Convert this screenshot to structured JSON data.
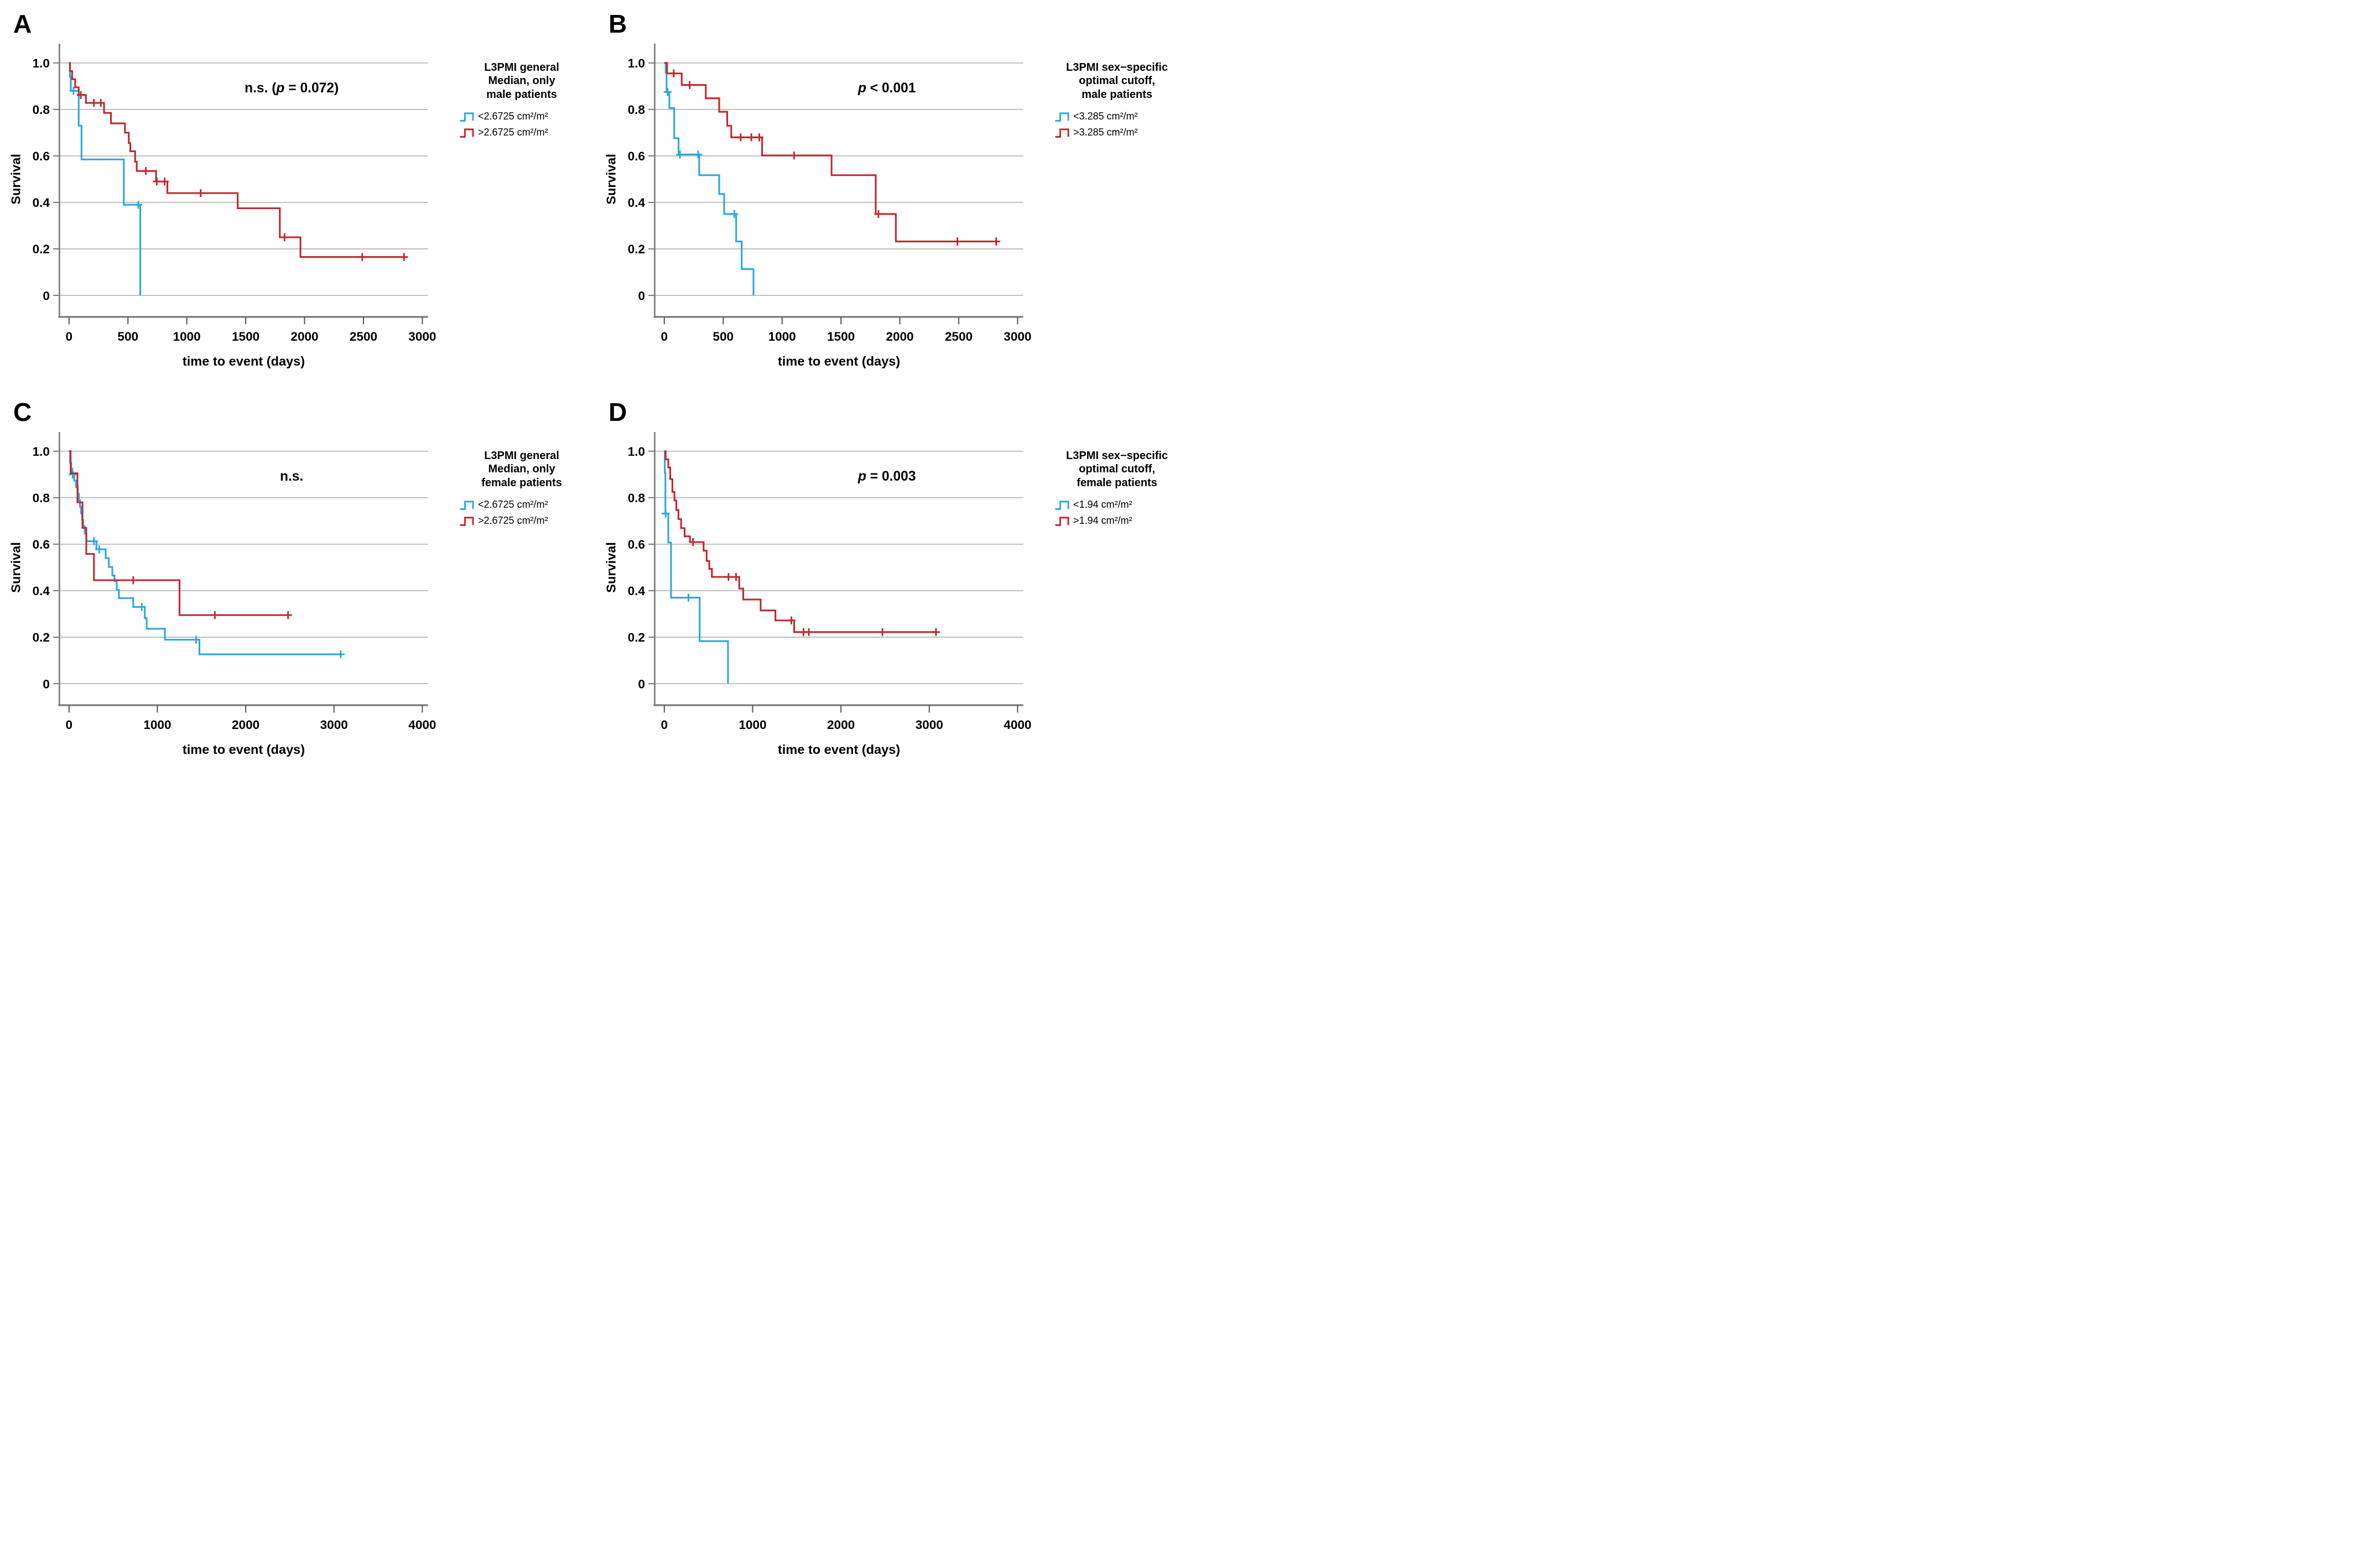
{
  "figure": {
    "colors": {
      "below_cutoff_line": "#2AA7DE",
      "above_cutoff_line": "#C1272D",
      "gridline": "#b3b3b3",
      "axis_line": "#7a7a7a",
      "tick": "#555555",
      "text": "#000000",
      "background": "#ffffff"
    }
  },
  "chart_data": [
    {
      "panel_letter": "A",
      "type": "line",
      "subtype": "kaplan-meier-step",
      "legend_title_lines": [
        "L3PMI general",
        "Median, only",
        "male patients"
      ],
      "annotation": {
        "pre": "n.s. (",
        "p_italic": "p",
        "post": " = 0.072)"
      },
      "xlabel": "time to event (days)",
      "ylabel": "Survival",
      "xticks": [
        0,
        500,
        1000,
        1500,
        2000,
        2500,
        3000
      ],
      "yticks": [
        "1.0",
        "0.8",
        "0.6",
        "0.4",
        "0.2",
        "0"
      ],
      "ylim": [
        0,
        1.0
      ],
      "xlim": [
        0,
        3200
      ],
      "grid": "horizontal",
      "legend_position": "right",
      "series": [
        {
          "name": "<2.6725 cm²/m²",
          "color": "#2AA7DE",
          "steps": [
            [
              0,
              1
            ],
            [
              8,
              0.94
            ],
            [
              15,
              0.88
            ],
            [
              82,
              0.73
            ],
            [
              106,
              0.585
            ],
            [
              465,
              0.39
            ],
            [
              605,
              0
            ]
          ],
          "censors": [
            [
              38,
              0.88
            ],
            [
              588,
              0.39
            ]
          ]
        },
        {
          "name": ">2.6725 cm²/m²",
          "color": "#C1272D",
          "steps": [
            [
              0,
              1
            ],
            [
              7,
              0.965
            ],
            [
              26,
              0.93
            ],
            [
              52,
              0.895
            ],
            [
              82,
              0.862
            ],
            [
              143,
              0.828
            ],
            [
              297,
              0.785
            ],
            [
              356,
              0.74
            ],
            [
              475,
              0.7
            ],
            [
              507,
              0.655
            ],
            [
              520,
              0.62
            ],
            [
              561,
              0.575
            ],
            [
              575,
              0.535
            ],
            [
              739,
              0.49
            ],
            [
              835,
              0.44
            ],
            [
              1432,
              0.375
            ],
            [
              1790,
              0.25
            ],
            [
              1965,
              0.165
            ],
            [
              2850,
              0.165
            ]
          ],
          "censors": [
            [
              100,
              0.862
            ],
            [
              211,
              0.828
            ],
            [
              270,
              0.828
            ],
            [
              652,
              0.535
            ],
            [
              745,
              0.49
            ],
            [
              812,
              0.49
            ],
            [
              1118,
              0.44
            ],
            [
              1830,
              0.25
            ],
            [
              2490,
              0.165
            ],
            [
              2845,
              0.165
            ]
          ]
        }
      ]
    },
    {
      "panel_letter": "B",
      "type": "line",
      "subtype": "kaplan-meier-step",
      "legend_title_lines": [
        "L3PMI sex−specific",
        "optimal cutoff,",
        "male patients"
      ],
      "annotation": {
        "pre": "",
        "p_italic": "p",
        "post": " < 0.001"
      },
      "xlabel": "time to event (days)",
      "ylabel": "Survival",
      "xticks": [
        0,
        500,
        1000,
        1500,
        2000,
        2500,
        3000
      ],
      "yticks": [
        "1.0",
        "0.8",
        "0.6",
        "0.4",
        "0.2",
        "0"
      ],
      "ylim": [
        0,
        1.0
      ],
      "xlim": [
        0,
        3200
      ],
      "grid": "horizontal",
      "legend_position": "right",
      "series": [
        {
          "name": "<3.285 cm²/m²",
          "color": "#2AA7DE",
          "steps": [
            [
              0,
              1
            ],
            [
              12,
              0.96
            ],
            [
              19,
              0.875
            ],
            [
              43,
              0.806
            ],
            [
              84,
              0.676
            ],
            [
              121,
              0.606
            ],
            [
              296,
              0.517
            ],
            [
              466,
              0.436
            ],
            [
              508,
              0.35
            ],
            [
              610,
              0.232
            ],
            [
              657,
              0.113
            ],
            [
              757,
              0
            ]
          ],
          "censors": [
            [
              28,
              0.875
            ],
            [
              133,
              0.606
            ],
            [
              287,
              0.606
            ],
            [
              594,
              0.35
            ]
          ]
        },
        {
          "name": ">3.285 cm²/m²",
          "color": "#C1272D",
          "steps": [
            [
              0,
              1
            ],
            [
              23,
              0.955
            ],
            [
              148,
              0.905
            ],
            [
              352,
              0.848
            ],
            [
              466,
              0.79
            ],
            [
              534,
              0.73
            ],
            [
              568,
              0.68
            ],
            [
              830,
              0.602
            ],
            [
              1420,
              0.517
            ],
            [
              1795,
              0.35
            ],
            [
              1966,
              0.232
            ],
            [
              2840,
              0.232
            ]
          ],
          "censors": [
            [
              80,
              0.955
            ],
            [
              215,
              0.905
            ],
            [
              648,
              0.68
            ],
            [
              739,
              0.68
            ],
            [
              807,
              0.68
            ],
            [
              1102,
              0.602
            ],
            [
              1818,
              0.35
            ],
            [
              2489,
              0.232
            ],
            [
              2818,
              0.232
            ]
          ]
        }
      ]
    },
    {
      "panel_letter": "C",
      "type": "line",
      "subtype": "kaplan-meier-step",
      "legend_title_lines": [
        "L3PMI general",
        "Median, only",
        "female patients"
      ],
      "annotation": {
        "pre": "n.s.",
        "p_italic": "",
        "post": ""
      },
      "xlabel": "time to event (days)",
      "ylabel": "Survival",
      "xticks": [
        0,
        1000,
        2000,
        3000,
        4000
      ],
      "yticks": [
        "1.0",
        "0.8",
        "0.6",
        "0.4",
        "0.2",
        "0"
      ],
      "ylim": [
        0,
        1.0
      ],
      "xlim": [
        0,
        4300
      ],
      "grid": "horizontal",
      "legend_position": "right",
      "series": [
        {
          "name": "<2.6725 cm²/m²",
          "color": "#2AA7DE",
          "steps": [
            [
              0,
              1
            ],
            [
              12,
              0.95
            ],
            [
              25,
              0.925
            ],
            [
              35,
              0.9
            ],
            [
              60,
              0.873
            ],
            [
              80,
              0.845
            ],
            [
              100,
              0.817
            ],
            [
              112,
              0.789
            ],
            [
              124,
              0.761
            ],
            [
              136,
              0.733
            ],
            [
              148,
              0.705
            ],
            [
              160,
              0.677
            ],
            [
              178,
              0.645
            ],
            [
              197,
              0.613
            ],
            [
              310,
              0.578
            ],
            [
              415,
              0.54
            ],
            [
              450,
              0.502
            ],
            [
              490,
              0.465
            ],
            [
              515,
              0.44
            ],
            [
              540,
              0.403
            ],
            [
              565,
              0.368
            ],
            [
              727,
              0.33
            ],
            [
              857,
              0.282
            ],
            [
              879,
              0.236
            ],
            [
              1085,
              0.189
            ],
            [
              1476,
              0.126
            ],
            [
              3076,
              0.126
            ]
          ],
          "censors": [
            [
              42,
              0.9
            ],
            [
              282,
              0.613
            ],
            [
              342,
              0.578
            ],
            [
              824,
              0.33
            ],
            [
              1439,
              0.189
            ],
            [
              3076,
              0.126
            ]
          ]
        },
        {
          "name": ">2.6725 cm²/m²",
          "color": "#C1272D",
          "steps": [
            [
              0,
              1
            ],
            [
              18,
              0.905
            ],
            [
              95,
              0.78
            ],
            [
              152,
              0.67
            ],
            [
              195,
              0.558
            ],
            [
              282,
              0.445
            ],
            [
              1251,
              0.295
            ],
            [
              2485,
              0.295
            ]
          ],
          "censors": [
            [
              727,
              0.445
            ],
            [
              1651,
              0.295
            ],
            [
              2480,
              0.295
            ]
          ]
        }
      ]
    },
    {
      "panel_letter": "D",
      "type": "line",
      "subtype": "kaplan-meier-step",
      "legend_title_lines": [
        "L3PMI sex−specific",
        "optimal cutoff,",
        "female patients"
      ],
      "annotation": {
        "pre": "",
        "p_italic": "p",
        "post": " = 0.003"
      },
      "xlabel": "time to event (days)",
      "ylabel": "Survival",
      "xticks": [
        0,
        1000,
        2000,
        3000,
        4000
      ],
      "yticks": [
        "1.0",
        "0.8",
        "0.6",
        "0.4",
        "0.2",
        "0"
      ],
      "ylim": [
        0,
        1.0
      ],
      "xlim": [
        0,
        4300
      ],
      "grid": "horizontal",
      "legend_position": "right",
      "series": [
        {
          "name": "<1.94 cm²/m²",
          "color": "#2AA7DE",
          "steps": [
            [
              0,
              1
            ],
            [
              5,
              0.907
            ],
            [
              12,
              0.732
            ],
            [
              45,
              0.607
            ],
            [
              76,
              0.37
            ],
            [
              400,
              0.183
            ],
            [
              721,
              0
            ]
          ],
          "censors": [
            [
              15,
              0.732
            ],
            [
              273,
              0.37
            ]
          ]
        },
        {
          "name": ">1.94 cm²/m²",
          "color": "#C1272D",
          "steps": [
            [
              0,
              1
            ],
            [
              15,
              0.965
            ],
            [
              45,
              0.93
            ],
            [
              67,
              0.88
            ],
            [
              91,
              0.825
            ],
            [
              115,
              0.788
            ],
            [
              136,
              0.747
            ],
            [
              160,
              0.708
            ],
            [
              190,
              0.669
            ],
            [
              230,
              0.634
            ],
            [
              290,
              0.609
            ],
            [
              445,
              0.572
            ],
            [
              479,
              0.528
            ],
            [
              509,
              0.494
            ],
            [
              539,
              0.459
            ],
            [
              848,
              0.409
            ],
            [
              894,
              0.362
            ],
            [
              1091,
              0.315
            ],
            [
              1258,
              0.272
            ],
            [
              1470,
              0.222
            ],
            [
              3080,
              0.222
            ]
          ],
          "censors": [
            [
              324,
              0.609
            ],
            [
              727,
              0.459
            ],
            [
              812,
              0.459
            ],
            [
              1439,
              0.272
            ],
            [
              1576,
              0.222
            ],
            [
              1636,
              0.222
            ],
            [
              2470,
              0.222
            ],
            [
              3076,
              0.222
            ]
          ]
        }
      ]
    }
  ]
}
